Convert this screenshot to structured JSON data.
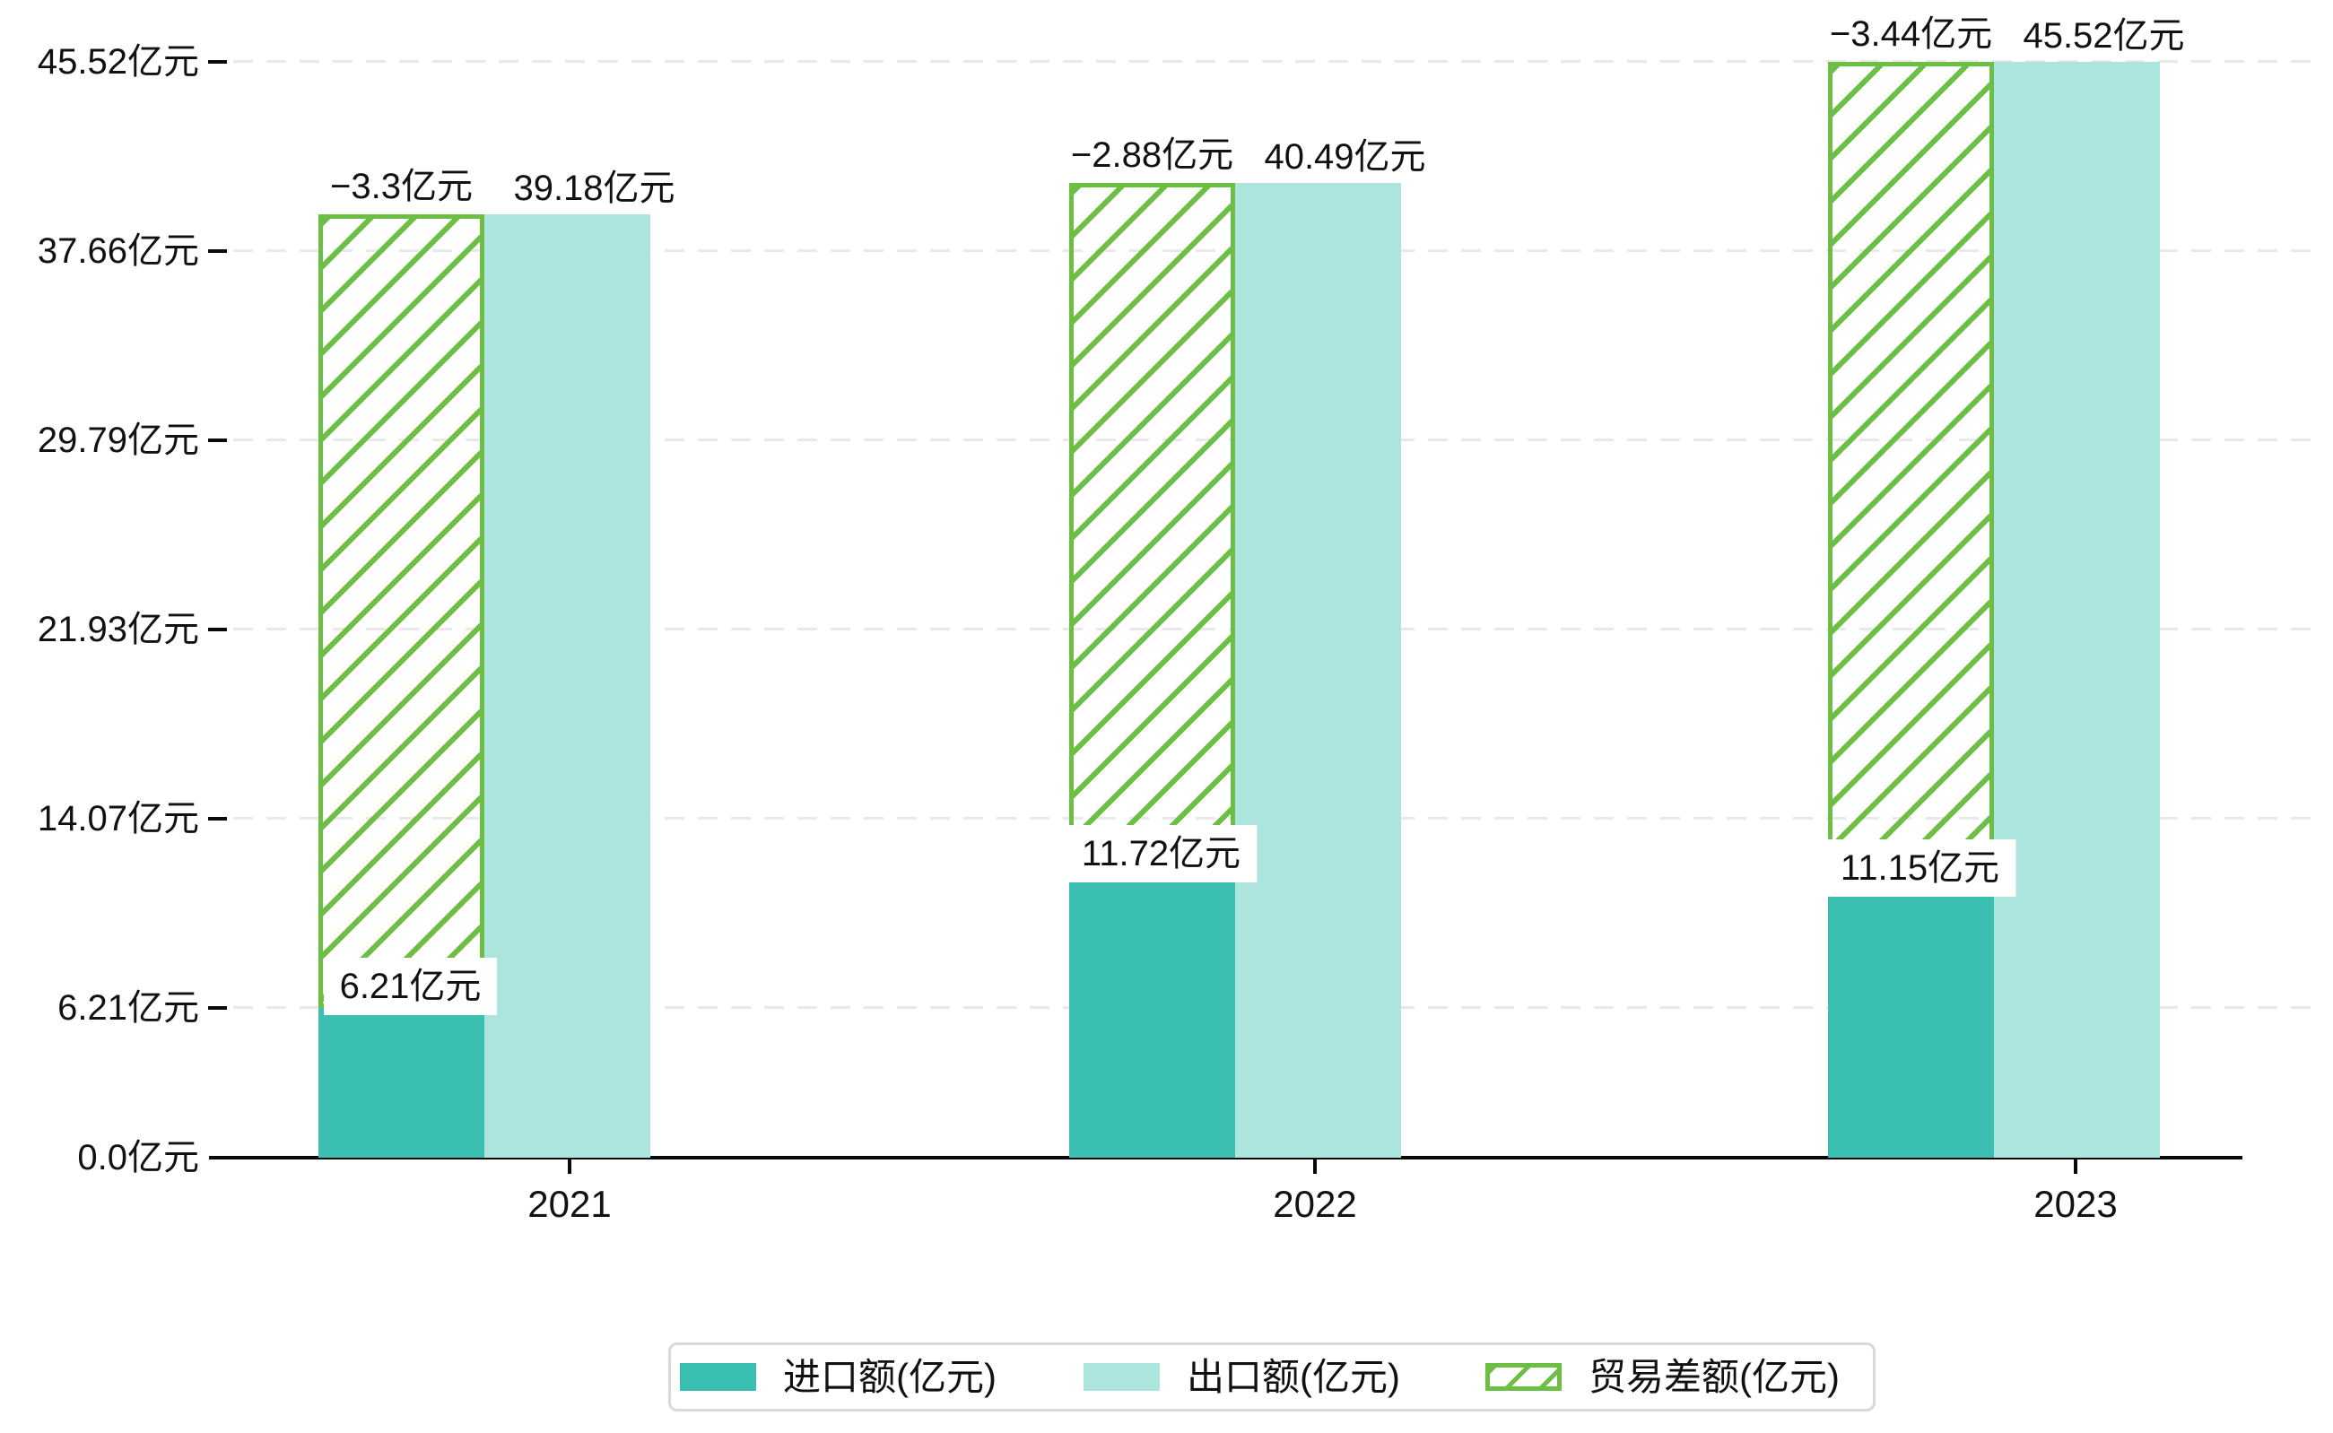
{
  "chart_data": {
    "type": "bar",
    "title": "",
    "categories": [
      "2021",
      "2022",
      "2023"
    ],
    "unit": "亿元",
    "series": [
      {
        "name": "进口额(亿元)",
        "type": "bar",
        "color": "#3abfb1",
        "values": [
          6.21,
          11.72,
          11.15
        ],
        "data_labels": [
          "6.21亿元",
          "11.72亿元",
          "11.15亿元"
        ]
      },
      {
        "name": "出口额(亿元)",
        "type": "bar",
        "color": "#abe5de",
        "values": [
          39.18,
          40.49,
          45.52
        ],
        "data_labels": [
          "39.18亿元",
          "40.49亿元",
          "45.52亿元"
        ]
      },
      {
        "name": "贸易差额(亿元)",
        "type": "hatched-range-bar",
        "color": "#6cbe45",
        "values": [
          -3.3,
          -2.88,
          -3.44
        ],
        "data_labels": [
          "−3.3亿元",
          "−2.88亿元",
          "−3.44亿元"
        ],
        "range_from_series": 0,
        "range_to_series": 1
      }
    ],
    "y_axis": {
      "min": 0,
      "max": 45.52,
      "ticks": [
        0.0,
        6.21,
        14.07,
        21.93,
        29.79,
        37.66,
        45.52
      ],
      "tick_labels": [
        "0.0亿元",
        "6.21亿元",
        "14.07亿元",
        "21.93亿元",
        "29.79亿元",
        "37.66亿元",
        "45.52亿元"
      ],
      "grid": "dashed"
    },
    "legend_position": "bottom"
  },
  "colors": {
    "import": "#3abfb1",
    "export": "#abe5de",
    "trade_balance": "#6cbe45",
    "axis": "#0a0a0a",
    "gridline": "#e9e9e9",
    "legend_border": "#d9d9d9",
    "text": "#111111",
    "background": "#ffffff"
  }
}
